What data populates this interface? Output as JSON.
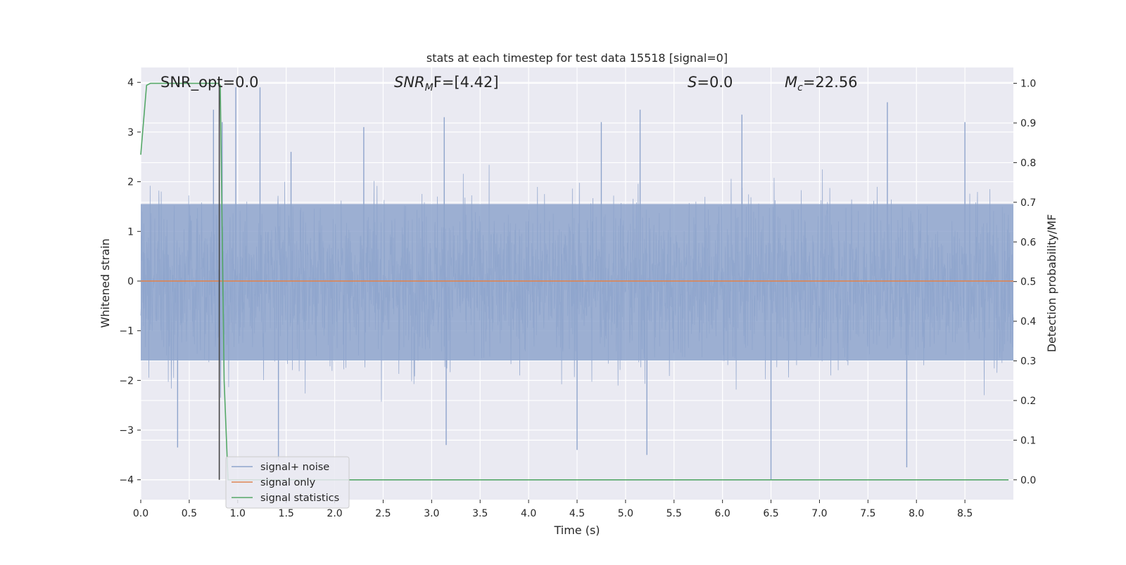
{
  "chart_data": {
    "type": "line",
    "title": "stats at each timestep for test data 15518 [signal=0]",
    "xlabel": "Time (s)",
    "ylabel_left": "Whitened strain",
    "ylabel_right": "Detection probability/MF",
    "xlim": [
      0.0,
      9.0
    ],
    "ylim_left": [
      -4.4,
      4.3
    ],
    "ylim_right": [
      -0.05,
      1.04
    ],
    "xticks": [
      0.0,
      0.5,
      1.0,
      1.5,
      2.0,
      2.5,
      3.0,
      3.5,
      4.0,
      4.5,
      5.0,
      5.5,
      6.0,
      6.5,
      7.0,
      7.5,
      8.0,
      8.5
    ],
    "xtick_labels": [
      "0.0",
      "0.5",
      "1.0",
      "1.5",
      "2.0",
      "2.5",
      "3.0",
      "3.5",
      "4.0",
      "4.5",
      "5.0",
      "5.5",
      "6.0",
      "6.5",
      "7.0",
      "7.5",
      "8.0",
      "8.5"
    ],
    "yticks_left": [
      -4,
      -3,
      -2,
      -1,
      0,
      1,
      2,
      3,
      4
    ],
    "ytick_labels_left": [
      "−4",
      "−3",
      "−2",
      "−1",
      "0",
      "1",
      "2",
      "3",
      "4"
    ],
    "yticks_right": [
      0.0,
      0.1,
      0.2,
      0.3,
      0.4,
      0.5,
      0.6,
      0.7,
      0.8,
      0.9,
      1.0
    ],
    "ytick_labels_right": [
      "0.0",
      "0.1",
      "0.2",
      "0.3",
      "0.4",
      "0.5",
      "0.6",
      "0.7",
      "0.8",
      "0.9",
      "1.0"
    ],
    "grid": true,
    "legend_position": "lower-left",
    "series": [
      {
        "name": "signal+ noise",
        "axis": "left",
        "color": "#8ea4cc",
        "kind": "noise",
        "core_band": [
          -1.6,
          1.55
        ],
        "typical_peaks": [
          -2.5,
          2.6
        ],
        "spikes": [
          {
            "x": 0.75,
            "y": 3.45
          },
          {
            "x": 0.84,
            "y": 3.2
          },
          {
            "x": 0.98,
            "y": 3.9
          },
          {
            "x": 1.23,
            "y": 3.9
          },
          {
            "x": 1.55,
            "y": 2.6
          },
          {
            "x": 2.3,
            "y": 3.1
          },
          {
            "x": 3.13,
            "y": 3.3
          },
          {
            "x": 4.75,
            "y": 3.2
          },
          {
            "x": 5.15,
            "y": 3.45
          },
          {
            "x": 6.2,
            "y": 3.35
          },
          {
            "x": 7.7,
            "y": 3.6
          },
          {
            "x": 8.5,
            "y": 3.2
          },
          {
            "x": 0.38,
            "y": -3.35
          },
          {
            "x": 1.42,
            "y": -3.6
          },
          {
            "x": 3.15,
            "y": -3.3
          },
          {
            "x": 4.5,
            "y": -3.4
          },
          {
            "x": 5.22,
            "y": -3.5
          },
          {
            "x": 6.5,
            "y": -4.0
          },
          {
            "x": 7.9,
            "y": -3.75
          }
        ]
      },
      {
        "name": "signal only",
        "axis": "left",
        "color": "#dd8452",
        "points": [
          [
            0.0,
            0.0
          ],
          [
            9.0,
            0.0
          ]
        ]
      },
      {
        "name": "signal statistics",
        "axis": "right",
        "color": "#55a868",
        "points": [
          [
            0.0,
            0.82
          ],
          [
            0.06,
            0.995
          ],
          [
            0.1,
            1.0
          ],
          [
            0.8,
            1.0
          ],
          [
            0.82,
            0.995
          ],
          [
            0.86,
            0.25
          ],
          [
            0.9,
            0.0
          ],
          [
            8.95,
            0.0
          ]
        ]
      }
    ],
    "vertical_line": {
      "x": 0.81,
      "y_from": -4.0,
      "y_to": 3.95,
      "color": "#444444"
    },
    "annotations": [
      {
        "id": "snr-opt",
        "text": "SNR_opt=0.0"
      },
      {
        "id": "snr-mf",
        "base": "SNR",
        "sub": "M",
        "rest": "F=[4.42]"
      },
      {
        "id": "s-stat",
        "base": "S",
        "rest": "=0.0"
      },
      {
        "id": "mc",
        "base": "M",
        "sub": "c",
        "rest": "=22.56"
      }
    ]
  }
}
